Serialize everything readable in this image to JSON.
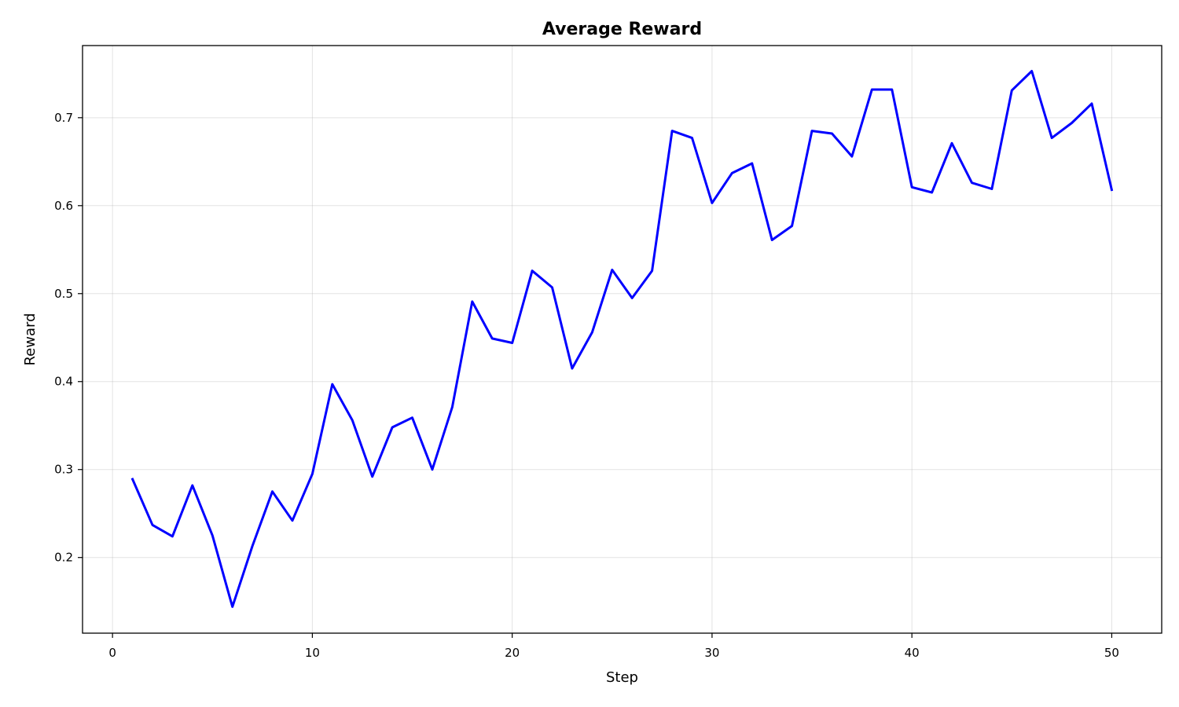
{
  "chart_data": {
    "type": "line",
    "title": "Average Reward",
    "xlabel": "Step",
    "ylabel": "Reward",
    "xlim": [
      -1.5,
      52.5
    ],
    "ylim": [
      0.114,
      0.782
    ],
    "xticks": [
      0,
      10,
      20,
      30,
      40,
      50
    ],
    "yticks": [
      0.2,
      0.3,
      0.4,
      0.5,
      0.6,
      0.7
    ],
    "xtick_labels": [
      "0",
      "10",
      "20",
      "30",
      "40",
      "50"
    ],
    "ytick_labels": [
      "0.2",
      "0.3",
      "0.4",
      "0.5",
      "0.6",
      "0.7"
    ],
    "grid": true,
    "series": [
      {
        "color": "#0000ff",
        "x": [
          1,
          2,
          3,
          4,
          5,
          6,
          7,
          8,
          9,
          10,
          11,
          12,
          13,
          14,
          15,
          16,
          17,
          18,
          19,
          20,
          21,
          22,
          23,
          24,
          25,
          26,
          27,
          28,
          29,
          30,
          31,
          32,
          33,
          34,
          35,
          36,
          37,
          38,
          39,
          40,
          41,
          42,
          43,
          44,
          45,
          46,
          47,
          48,
          49,
          50
        ],
        "y": [
          0.289,
          0.237,
          0.224,
          0.282,
          0.225,
          0.144,
          0.213,
          0.275,
          0.242,
          0.295,
          0.397,
          0.356,
          0.292,
          0.348,
          0.359,
          0.3,
          0.371,
          0.491,
          0.449,
          0.444,
          0.526,
          0.507,
          0.415,
          0.456,
          0.527,
          0.495,
          0.526,
          0.685,
          0.677,
          0.603,
          0.637,
          0.648,
          0.561,
          0.577,
          0.685,
          0.682,
          0.656,
          0.732,
          0.732,
          0.621,
          0.615,
          0.671,
          0.626,
          0.619,
          0.731,
          0.753,
          0.677,
          0.694,
          0.716,
          0.618
        ]
      }
    ]
  }
}
